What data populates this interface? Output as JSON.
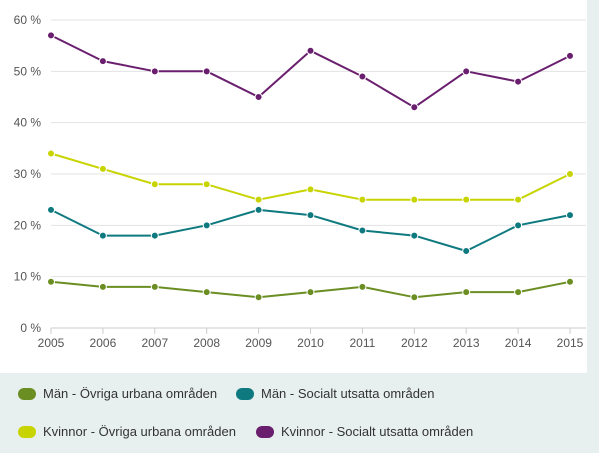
{
  "chart_data": {
    "type": "line",
    "title": "",
    "xlabel": "",
    "ylabel": "",
    "x": [
      "2005",
      "2006",
      "2007",
      "2008",
      "2009",
      "2010",
      "2011",
      "2012",
      "2013",
      "2014",
      "2015"
    ],
    "y_ticks": [
      "0 %",
      "10 %",
      "20 %",
      "30 %",
      "40 %",
      "50 %",
      "60 %"
    ],
    "ylim": [
      0,
      60
    ],
    "grid": true,
    "legend_position": "bottom",
    "series": [
      {
        "name": "Män - Övriga urbana områden",
        "color": "#6b8e23",
        "values": [
          9,
          8,
          8,
          7,
          6,
          7,
          8,
          6,
          7,
          7,
          9
        ]
      },
      {
        "name": "Män - Socialt utsatta områden",
        "color": "#0e7a80",
        "values": [
          23,
          18,
          18,
          20,
          23,
          22,
          19,
          18,
          15,
          20,
          22
        ]
      },
      {
        "name": "Kvinnor - Övriga urbana områden",
        "color": "#c8d400",
        "values": [
          34,
          31,
          28,
          28,
          25,
          27,
          25,
          25,
          25,
          25,
          30
        ]
      },
      {
        "name": "Kvinnor - Socialt utsatta områden",
        "color": "#6a1f6e",
        "values": [
          57,
          52,
          50,
          50,
          45,
          54,
          49,
          43,
          50,
          48,
          53
        ]
      }
    ]
  }
}
